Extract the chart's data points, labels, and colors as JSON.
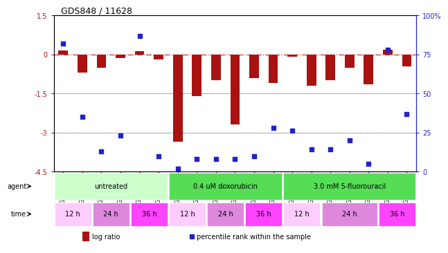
{
  "title": "GDS848 / 11628",
  "samples": [
    "GSM11706",
    "GSM11853",
    "GSM11729",
    "GSM11746",
    "GSM11711",
    "GSM11854",
    "GSM11731",
    "GSM11839",
    "GSM11836",
    "GSM11849",
    "GSM11682",
    "GSM11690",
    "GSM11692",
    "GSM11841",
    "GSM11901",
    "GSM11715",
    "GSM11724",
    "GSM11684",
    "GSM11696"
  ],
  "log_ratio": [
    0.15,
    -0.7,
    -0.5,
    -0.15,
    0.12,
    -0.2,
    -3.35,
    -1.6,
    -1.0,
    -2.7,
    -0.9,
    -1.1,
    -0.08,
    -1.2,
    -1.0,
    -0.5,
    -1.15,
    0.18,
    -0.45
  ],
  "percentile": [
    82,
    35,
    13,
    23,
    87,
    10,
    2,
    8,
    8,
    8,
    10,
    28,
    26,
    14,
    14,
    20,
    5,
    78,
    37
  ],
  "ylim_left": [
    -4.5,
    1.5
  ],
  "ylim_right": [
    0,
    100
  ],
  "yticks_left": [
    1.5,
    0.0,
    -1.5,
    -3.0,
    -4.5
  ],
  "yticks_right": [
    100,
    75,
    50,
    25,
    0
  ],
  "bar_color": "#aa1111",
  "dot_color": "#2222cc",
  "agent_groups": [
    {
      "label": "untreated",
      "start": 0,
      "end": 6,
      "color": "#ccffcc"
    },
    {
      "label": "0.4 uM doxorubicin",
      "start": 6,
      "end": 12,
      "color": "#55dd55"
    },
    {
      "label": "3.0 mM 5-fluorouracil",
      "start": 12,
      "end": 19,
      "color": "#55dd55"
    }
  ],
  "time_groups": [
    {
      "label": "12 h",
      "start": 0,
      "end": 2,
      "color": "#ffccff"
    },
    {
      "label": "24 h",
      "start": 2,
      "end": 4,
      "color": "#dd88dd"
    },
    {
      "label": "36 h",
      "start": 4,
      "end": 6,
      "color": "#ff44ff"
    },
    {
      "label": "12 h",
      "start": 6,
      "end": 8,
      "color": "#ffccff"
    },
    {
      "label": "24 h",
      "start": 8,
      "end": 10,
      "color": "#dd88dd"
    },
    {
      "label": "36 h",
      "start": 10,
      "end": 12,
      "color": "#ff44ff"
    },
    {
      "label": "12 h",
      "start": 12,
      "end": 14,
      "color": "#ffccff"
    },
    {
      "label": "24 h",
      "start": 14,
      "end": 17,
      "color": "#dd88dd"
    },
    {
      "label": "36 h",
      "start": 17,
      "end": 19,
      "color": "#ff44ff"
    }
  ],
  "bar_width": 0.5,
  "dot_size": 18,
  "bar_color_left_axis": "#aa1111",
  "right_axis_color": "#2222cc",
  "title_fontsize": 9,
  "tick_fontsize": 7,
  "sample_fontsize": 5.5,
  "row_label_fontsize": 7,
  "row_content_fontsize": 7,
  "legend_fontsize": 7,
  "legend_marker_color_bar": "#aa1111",
  "legend_marker_color_dot": "#2222cc",
  "legend_label_bar": "log ratio",
  "legend_label_dot": "percentile rank within the sample"
}
